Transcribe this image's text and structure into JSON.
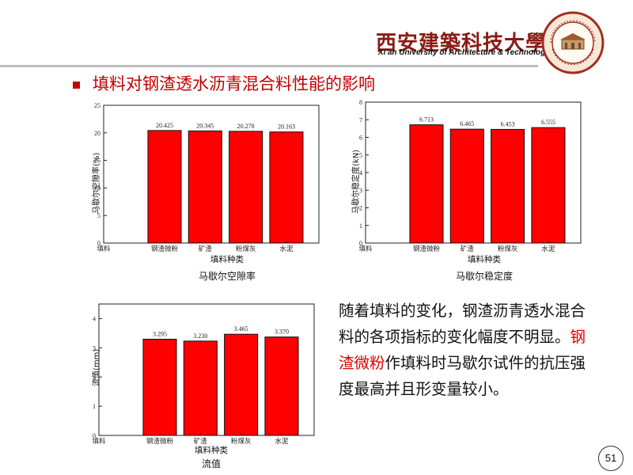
{
  "header": {
    "university_cn": "西安建築科技大學",
    "university_en": "Xi'an University of Architecture & Technology"
  },
  "slide": {
    "title": "填料对钢渣透水沥青混合料性能的影响",
    "page_number": "51",
    "body_text_part1": "随着填料的变化，钢渣沥青透水混合料的各项指标的变化幅度不明显。",
    "body_text_highlight": "钢渣微粉",
    "body_text_part2": "作填料时马歇尔试件的抗压强度最高并且形变量较小。"
  },
  "chart_data": [
    {
      "type": "bar",
      "caption": "马歇尔空隙率",
      "xlabel": "填料种类",
      "ylabel": "马歇尔空隙率(%)",
      "x_axis_title_tick": "填料",
      "categories": [
        "钢渣微粉",
        "矿渣",
        "粉煤灰",
        "水泥"
      ],
      "values": [
        20.425,
        20.345,
        20.278,
        20.163
      ],
      "value_labels": [
        "20.425",
        "20.345",
        "20.278",
        "20.163"
      ],
      "ylim": [
        0,
        25
      ],
      "yticks": [
        0,
        5,
        10,
        15,
        20,
        25
      ],
      "color": "#ff0000"
    },
    {
      "type": "bar",
      "caption": "马歇尔稳定度",
      "xlabel": "填料种类",
      "ylabel": "马歇尔稳定度(kN)",
      "x_axis_title_tick": "填料",
      "categories": [
        "钢渣微粉",
        "矿渣",
        "粉煤灰",
        "水泥"
      ],
      "values": [
        6.713,
        6.465,
        6.453,
        6.555
      ],
      "value_labels": [
        "6.713",
        "6.465",
        "6.453",
        "6.555"
      ],
      "ylim": [
        0,
        8
      ],
      "yticks": [
        0,
        1,
        2,
        3,
        4,
        5,
        6,
        7,
        8
      ],
      "color": "#ff0000"
    },
    {
      "type": "bar",
      "caption": "流值",
      "xlabel": "填料种类",
      "ylabel": "流值(mm)",
      "x_axis_title_tick": "填料",
      "categories": [
        "钢渣微粉",
        "矿渣",
        "粉煤灰",
        "水泥"
      ],
      "values": [
        3.295,
        3.23,
        3.465,
        3.37
      ],
      "value_labels": [
        "3.295",
        "3.230",
        "3.465",
        "3.370"
      ],
      "ylim": [
        0,
        4.5
      ],
      "yticks": [
        0,
        1,
        2,
        3,
        4
      ],
      "color": "#ff0000"
    }
  ]
}
